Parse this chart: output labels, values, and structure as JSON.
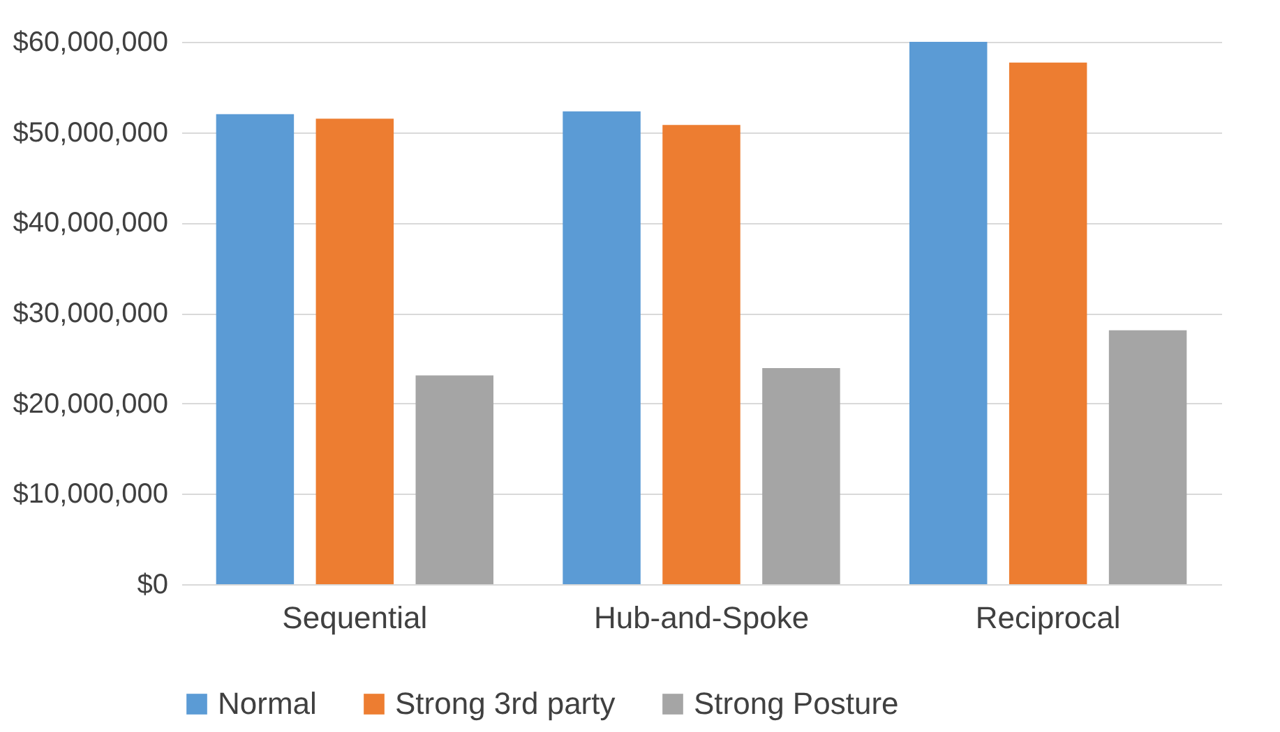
{
  "chart_data": {
    "type": "bar",
    "categories": [
      "Sequential",
      "Hub-and-Spoke",
      "Reciprocal"
    ],
    "series": [
      {
        "name": "Normal",
        "color": "#5b9bd5",
        "values": [
          52000000,
          52300000,
          60000000
        ]
      },
      {
        "name": "Strong 3rd party",
        "color": "#ed7d31",
        "values": [
          51500000,
          50800000,
          57700000
        ]
      },
      {
        "name": "Strong Posture",
        "color": "#a5a5a5",
        "values": [
          23100000,
          23900000,
          28100000
        ]
      }
    ],
    "ylim": [
      0,
      60000000
    ],
    "yticks": [
      {
        "value": 0,
        "label": "$0"
      },
      {
        "value": 10000000,
        "label": "$10,000,000"
      },
      {
        "value": 20000000,
        "label": "$20,000,000"
      },
      {
        "value": 30000000,
        "label": "$30,000,000"
      },
      {
        "value": 40000000,
        "label": "$40,000,000"
      },
      {
        "value": 50000000,
        "label": "$50,000,000"
      },
      {
        "value": 60000000,
        "label": "$60,000,000"
      }
    ],
    "grid": "y",
    "legend": "bottom"
  }
}
